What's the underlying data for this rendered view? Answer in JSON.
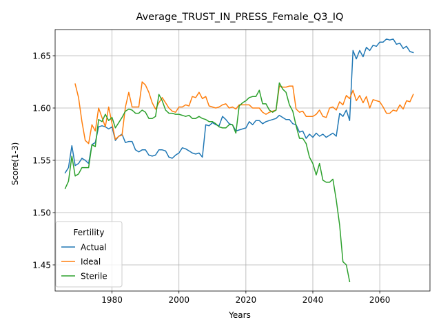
{
  "chart_data": {
    "type": "line",
    "title": "Average_TRUST_IN_PRESS_Female_Q3_IQ",
    "xlabel": "Years",
    "ylabel": "Score(1-3)",
    "xlim": [
      1963,
      2075
    ],
    "ylim": [
      1.425,
      1.675
    ],
    "xticks": [
      1980,
      2000,
      2020,
      2040,
      2060
    ],
    "xtick_labels": [
      "1980",
      "2000",
      "2020",
      "2040",
      "2060"
    ],
    "yticks": [
      1.45,
      1.5,
      1.55,
      1.6,
      1.65
    ],
    "ytick_labels": [
      "1.45",
      "1.50",
      "1.55",
      "1.60",
      "1.65"
    ],
    "grid": true,
    "legend": {
      "title": "Fertility",
      "position": "lower-left"
    },
    "series": [
      {
        "name": "Actual",
        "color": "#1f77b4",
        "x": [
          1966,
          1967,
          1968,
          1969,
          1970,
          1971,
          1972,
          1973,
          1974,
          1975,
          1976,
          1977,
          1978,
          1979,
          1980,
          1981,
          1982,
          1983,
          1984,
          1985,
          1986,
          1987,
          1988,
          1989,
          1990,
          1991,
          1992,
          1993,
          1994,
          1995,
          1996,
          1997,
          1998,
          1999,
          2000,
          2001,
          2002,
          2003,
          2004,
          2005,
          2006,
          2007,
          2008,
          2009,
          2010,
          2011,
          2012,
          2013,
          2014,
          2015,
          2016,
          2017,
          2018,
          2019,
          2020,
          2021,
          2022,
          2023,
          2024,
          2025,
          2026,
          2027,
          2028,
          2029,
          2030,
          2031,
          2032,
          2033,
          2034,
          2035,
          2036,
          2037,
          2038,
          2039,
          2040,
          2041,
          2042,
          2043,
          2044,
          2045,
          2046,
          2047,
          2048,
          2049,
          2050,
          2051,
          2052,
          2053,
          2054,
          2055,
          2056,
          2057,
          2058,
          2059,
          2060,
          2061,
          2062,
          2063,
          2064,
          2065,
          2066,
          2067,
          2068,
          2069,
          2070
        ],
        "y": [
          1.538,
          1.543,
          1.564,
          1.545,
          1.547,
          1.552,
          1.55,
          1.547,
          1.565,
          1.567,
          1.582,
          1.583,
          1.582,
          1.58,
          1.582,
          1.569,
          1.573,
          1.575,
          1.567,
          1.568,
          1.568,
          1.56,
          1.558,
          1.56,
          1.56,
          1.555,
          1.554,
          1.555,
          1.56,
          1.56,
          1.559,
          1.553,
          1.552,
          1.555,
          1.557,
          1.562,
          1.561,
          1.559,
          1.557,
          1.556,
          1.557,
          1.553,
          1.584,
          1.583,
          1.586,
          1.584,
          1.583,
          1.592,
          1.589,
          1.585,
          1.584,
          1.578,
          1.579,
          1.58,
          1.581,
          1.587,
          1.584,
          1.588,
          1.588,
          1.585,
          1.587,
          1.588,
          1.589,
          1.59,
          1.593,
          1.591,
          1.589,
          1.589,
          1.585,
          1.584,
          1.577,
          1.578,
          1.571,
          1.575,
          1.572,
          1.576,
          1.573,
          1.575,
          1.572,
          1.574,
          1.576,
          1.573,
          1.595,
          1.592,
          1.598,
          1.588,
          1.655,
          1.647,
          1.655,
          1.649,
          1.658,
          1.655,
          1.66,
          1.659,
          1.663,
          1.663,
          1.666,
          1.665,
          1.666,
          1.661,
          1.662,
          1.657,
          1.659,
          1.654,
          1.653
        ]
      },
      {
        "name": "Ideal",
        "color": "#ff7f0e",
        "x": [
          1969,
          1970,
          1971,
          1972,
          1973,
          1974,
          1975,
          1976,
          1977,
          1978,
          1979,
          1980,
          1981,
          1982,
          1983,
          1984,
          1985,
          1986,
          1987,
          1988,
          1989,
          1990,
          1991,
          1992,
          1993,
          1994,
          1995,
          1996,
          1997,
          1998,
          1999,
          2000,
          2001,
          2002,
          2003,
          2004,
          2005,
          2006,
          2007,
          2008,
          2009,
          2010,
          2011,
          2012,
          2013,
          2014,
          2015,
          2016,
          2017,
          2018,
          2019,
          2020,
          2021,
          2022,
          2023,
          2024,
          2025,
          2026,
          2027,
          2028,
          2029,
          2030,
          2031,
          2032,
          2033,
          2034,
          2035,
          2036,
          2037,
          2038,
          2039,
          2040,
          2041,
          2042,
          2043,
          2044,
          2045,
          2046,
          2047,
          2048,
          2049,
          2050,
          2051,
          2052,
          2053,
          2054,
          2055,
          2056,
          2057,
          2058,
          2059,
          2060,
          2061,
          2062,
          2063,
          2064,
          2065,
          2066,
          2067,
          2068,
          2069,
          2070
        ],
        "y": [
          1.623,
          1.61,
          1.587,
          1.569,
          1.566,
          1.584,
          1.578,
          1.6,
          1.591,
          1.582,
          1.601,
          1.585,
          1.57,
          1.573,
          1.574,
          1.601,
          1.615,
          1.601,
          1.601,
          1.601,
          1.625,
          1.622,
          1.615,
          1.605,
          1.599,
          1.605,
          1.61,
          1.605,
          1.6,
          1.597,
          1.596,
          1.601,
          1.601,
          1.603,
          1.602,
          1.611,
          1.61,
          1.615,
          1.609,
          1.611,
          1.602,
          1.601,
          1.6,
          1.601,
          1.603,
          1.604,
          1.6,
          1.601,
          1.599,
          1.603,
          1.603,
          1.603,
          1.603,
          1.6,
          1.6,
          1.6,
          1.596,
          1.594,
          1.596,
          1.597,
          1.598,
          1.621,
          1.62,
          1.62,
          1.621,
          1.621,
          1.599,
          1.596,
          1.597,
          1.592,
          1.592,
          1.592,
          1.594,
          1.598,
          1.592,
          1.591,
          1.6,
          1.601,
          1.598,
          1.606,
          1.603,
          1.612,
          1.609,
          1.617,
          1.607,
          1.612,
          1.605,
          1.611,
          1.6,
          1.608,
          1.607,
          1.606,
          1.601,
          1.595,
          1.595,
          1.598,
          1.597,
          1.603,
          1.599,
          1.607,
          1.606,
          1.613
        ]
      },
      {
        "name": "Sterile",
        "color": "#2ca02c",
        "x": [
          1966,
          1967,
          1968,
          1969,
          1970,
          1971,
          1972,
          1973,
          1974,
          1975,
          1976,
          1977,
          1978,
          1979,
          1980,
          1981,
          1982,
          1983,
          1984,
          1985,
          1986,
          1987,
          1988,
          1989,
          1990,
          1991,
          1992,
          1993,
          1994,
          1995,
          1996,
          1997,
          1998,
          1999,
          2000,
          2001,
          2002,
          2003,
          2004,
          2005,
          2006,
          2007,
          2008,
          2009,
          2010,
          2011,
          2012,
          2013,
          2014,
          2015,
          2016,
          2017,
          2018,
          2019,
          2020,
          2021,
          2022,
          2023,
          2024,
          2025,
          2026,
          2027,
          2028,
          2029,
          2030,
          2031,
          2032,
          2033,
          2034,
          2035,
          2036,
          2037,
          2038,
          2039,
          2040,
          2041,
          2042,
          2043,
          2044,
          2045,
          2046,
          2047,
          2048,
          2049,
          2050,
          2051
        ],
        "y": [
          1.523,
          1.53,
          1.554,
          1.535,
          1.537,
          1.543,
          1.543,
          1.543,
          1.565,
          1.563,
          1.589,
          1.587,
          1.594,
          1.588,
          1.591,
          1.581,
          1.586,
          1.591,
          1.597,
          1.599,
          1.598,
          1.595,
          1.595,
          1.598,
          1.596,
          1.59,
          1.59,
          1.592,
          1.613,
          1.607,
          1.598,
          1.595,
          1.595,
          1.594,
          1.594,
          1.593,
          1.592,
          1.593,
          1.59,
          1.59,
          1.592,
          1.59,
          1.589,
          1.587,
          1.587,
          1.585,
          1.582,
          1.581,
          1.581,
          1.584,
          1.584,
          1.576,
          1.602,
          1.605,
          1.607,
          1.61,
          1.611,
          1.611,
          1.617,
          1.604,
          1.604,
          1.598,
          1.596,
          1.598,
          1.624,
          1.618,
          1.615,
          1.603,
          1.597,
          1.583,
          1.571,
          1.571,
          1.566,
          1.553,
          1.547,
          1.536,
          1.547,
          1.531,
          1.529,
          1.529,
          1.532,
          1.512,
          1.488,
          1.453,
          1.45,
          1.434
        ]
      }
    ]
  }
}
